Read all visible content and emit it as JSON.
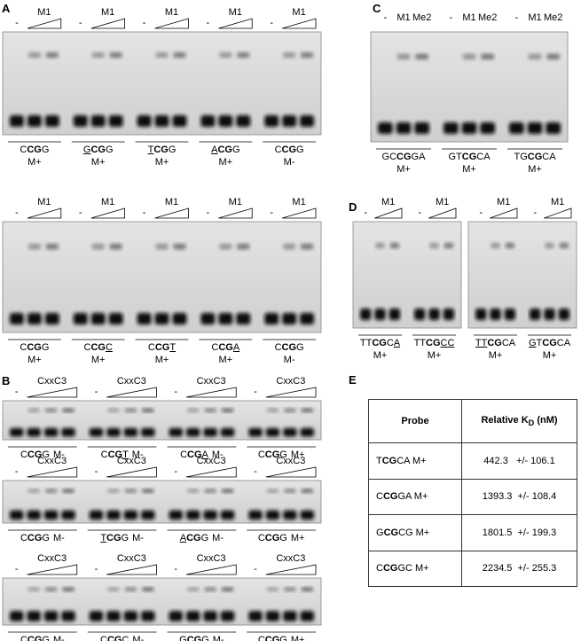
{
  "panels": [
    {
      "letter": "A",
      "gels": [
        {
          "reagent": "M1",
          "minus": "-",
          "groups": [
            {
              "probe": [
                {
                  "text": "C"
                },
                {
                  "text": "CG",
                  "bold": true
                },
                {
                  "text": "G"
                }
              ],
              "methyl": "M+"
            },
            {
              "probe": [
                {
                  "text": "G",
                  "underline": true
                },
                {
                  "text": "CG",
                  "bold": true
                },
                {
                  "text": "G"
                }
              ],
              "methyl": "M+"
            },
            {
              "probe": [
                {
                  "text": "T",
                  "underline": true
                },
                {
                  "text": "CG",
                  "bold": true
                },
                {
                  "text": "G"
                }
              ],
              "methyl": "M+"
            },
            {
              "probe": [
                {
                  "text": "A",
                  "underline": true
                },
                {
                  "text": "CG",
                  "bold": true
                },
                {
                  "text": "G"
                }
              ],
              "methyl": "M+"
            },
            {
              "probe": [
                {
                  "text": "C"
                },
                {
                  "text": "CG",
                  "bold": true
                },
                {
                  "text": "G"
                }
              ],
              "methyl": "M-"
            }
          ]
        },
        {
          "reagent": "M1",
          "minus": "-",
          "groups": [
            {
              "probe": [
                {
                  "text": "C"
                },
                {
                  "text": "CG",
                  "bold": true
                },
                {
                  "text": "G"
                }
              ],
              "methyl": "M+"
            },
            {
              "probe": [
                {
                  "text": "C"
                },
                {
                  "text": "CG",
                  "bold": true
                },
                {
                  "text": "C",
                  "underline": true
                }
              ],
              "methyl": "M+"
            },
            {
              "probe": [
                {
                  "text": "C"
                },
                {
                  "text": "CG",
                  "bold": true
                },
                {
                  "text": "T",
                  "underline": true
                }
              ],
              "methyl": "M+"
            },
            {
              "probe": [
                {
                  "text": "C"
                },
                {
                  "text": "CG",
                  "bold": true
                },
                {
                  "text": "A",
                  "underline": true
                }
              ],
              "methyl": "M+"
            },
            {
              "probe": [
                {
                  "text": "C"
                },
                {
                  "text": "CG",
                  "bold": true
                },
                {
                  "text": "G"
                }
              ],
              "methyl": "M-"
            }
          ]
        }
      ]
    },
    {
      "letter": "B",
      "gels": [
        {
          "reagent": "CxxC3",
          "minus": "-",
          "groups": [
            {
              "probe": [
                {
                  "text": "C"
                },
                {
                  "text": "CG",
                  "bold": true
                },
                {
                  "text": "G"
                }
              ],
              "methyl": "M-"
            },
            {
              "probe": [
                {
                  "text": "C"
                },
                {
                  "text": "CG",
                  "bold": true
                },
                {
                  "text": "T",
                  "underline": true
                }
              ],
              "methyl": "M-"
            },
            {
              "probe": [
                {
                  "text": "C"
                },
                {
                  "text": "CG",
                  "bold": true
                },
                {
                  "text": "A",
                  "underline": true
                }
              ],
              "methyl": "M-"
            },
            {
              "probe": [
                {
                  "text": "C"
                },
                {
                  "text": "CG",
                  "bold": true
                },
                {
                  "text": "G"
                }
              ],
              "methyl": "M+"
            }
          ]
        },
        {
          "reagent": "CxxC3",
          "minus": "-",
          "groups": [
            {
              "probe": [
                {
                  "text": "C"
                },
                {
                  "text": "CG",
                  "bold": true
                },
                {
                  "text": "G"
                }
              ],
              "methyl": "M-"
            },
            {
              "probe": [
                {
                  "text": "T",
                  "underline": true
                },
                {
                  "text": "CG",
                  "bold": true
                },
                {
                  "text": "G"
                }
              ],
              "methyl": "M-"
            },
            {
              "probe": [
                {
                  "text": "A",
                  "underline": true
                },
                {
                  "text": "CG",
                  "bold": true
                },
                {
                  "text": "G"
                }
              ],
              "methyl": "M-"
            },
            {
              "probe": [
                {
                  "text": "C"
                },
                {
                  "text": "CG",
                  "bold": true
                },
                {
                  "text": "G"
                }
              ],
              "methyl": "M+"
            }
          ]
        },
        {
          "reagent": "CxxC3",
          "minus": "-",
          "groups": [
            {
              "probe": [
                {
                  "text": "C"
                },
                {
                  "text": "CG",
                  "bold": true
                },
                {
                  "text": "G"
                }
              ],
              "methyl": "M-"
            },
            {
              "probe": [
                {
                  "text": "C"
                },
                {
                  "text": "CG",
                  "bold": true
                },
                {
                  "text": "C",
                  "underline": true
                }
              ],
              "methyl": "M-"
            },
            {
              "probe": [
                {
                  "text": "G",
                  "underline": true
                },
                {
                  "text": "CG",
                  "bold": true
                },
                {
                  "text": "G"
                }
              ],
              "methyl": "M-"
            },
            {
              "probe": [
                {
                  "text": "C"
                },
                {
                  "text": "CG",
                  "bold": true
                },
                {
                  "text": "G"
                }
              ],
              "methyl": "M+"
            }
          ]
        }
      ]
    },
    {
      "letter": "C",
      "gels": [
        {
          "lanes": [
            "-",
            "M1",
            "Me2"
          ],
          "groups": [
            {
              "probe": [
                {
                  "text": "GC"
                },
                {
                  "text": "CG",
                  "bold": true
                },
                {
                  "text": "GA"
                }
              ],
              "methyl": "M+"
            },
            {
              "probe": [
                {
                  "text": "GT"
                },
                {
                  "text": "CG",
                  "bold": true
                },
                {
                  "text": "CA"
                }
              ],
              "methyl": "M+"
            },
            {
              "probe": [
                {
                  "text": "TG"
                },
                {
                  "text": "CG",
                  "bold": true
                },
                {
                  "text": "CA"
                }
              ],
              "methyl": "M+"
            }
          ]
        }
      ]
    },
    {
      "letter": "D",
      "gels": [
        {
          "reagent": "M1",
          "minus": "-",
          "groups": [
            {
              "probe": [
                {
                  "text": "TT"
                },
                {
                  "text": "CG",
                  "bold": true
                },
                {
                  "text": "C"
                },
                {
                  "text": "A",
                  "underline": true
                }
              ],
              "methyl": "M+"
            },
            {
              "probe": [
                {
                  "text": "TT"
                },
                {
                  "text": "CG",
                  "bold": true
                },
                {
                  "text": "CC",
                  "underline": true
                }
              ],
              "methyl": "M+"
            }
          ]
        },
        {
          "reagent": "M1",
          "minus": "-",
          "groups": [
            {
              "probe": [
                {
                  "text": "TT",
                  "underline": true
                },
                {
                  "text": "CG",
                  "bold": true
                },
                {
                  "text": "CA"
                }
              ],
              "methyl": "M+"
            },
            {
              "probe": [
                {
                  "text": "G",
                  "underline": true
                },
                {
                  "text": "T"
                },
                {
                  "text": "CG",
                  "bold": true
                },
                {
                  "text": "CA"
                }
              ],
              "methyl": "M+"
            }
          ]
        }
      ]
    },
    {
      "letter": "E",
      "table": {
        "header": [
          [
            {
              "text": "Probe"
            }
          ],
          [
            {
              "text": "Relative  K"
            },
            {
              "text": "D",
              "sub": true
            },
            {
              "text": " (nM)"
            }
          ]
        ],
        "rows": [
          {
            "probe": [
              {
                "text": "T"
              },
              {
                "text": "CG",
                "bold": true
              },
              {
                "text": "CA M+"
              }
            ],
            "kd": "442.3   +/- 106.1"
          },
          {
            "probe": [
              {
                "text": "C"
              },
              {
                "text": "CG",
                "bold": true
              },
              {
                "text": "GA M+"
              }
            ],
            "kd": "1393.3  +/- 108.4"
          },
          {
            "probe": [
              {
                "text": "G"
              },
              {
                "text": "CG",
                "bold": true
              },
              {
                "text": "CG M+"
              }
            ],
            "kd": "1801.5  +/- 199.3"
          },
          {
            "probe": [
              {
                "text": "C"
              },
              {
                "text": "CG",
                "bold": true
              },
              {
                "text": "GC M+"
              }
            ],
            "kd": "2234.5  +/- 255.3"
          }
        ]
      }
    }
  ]
}
